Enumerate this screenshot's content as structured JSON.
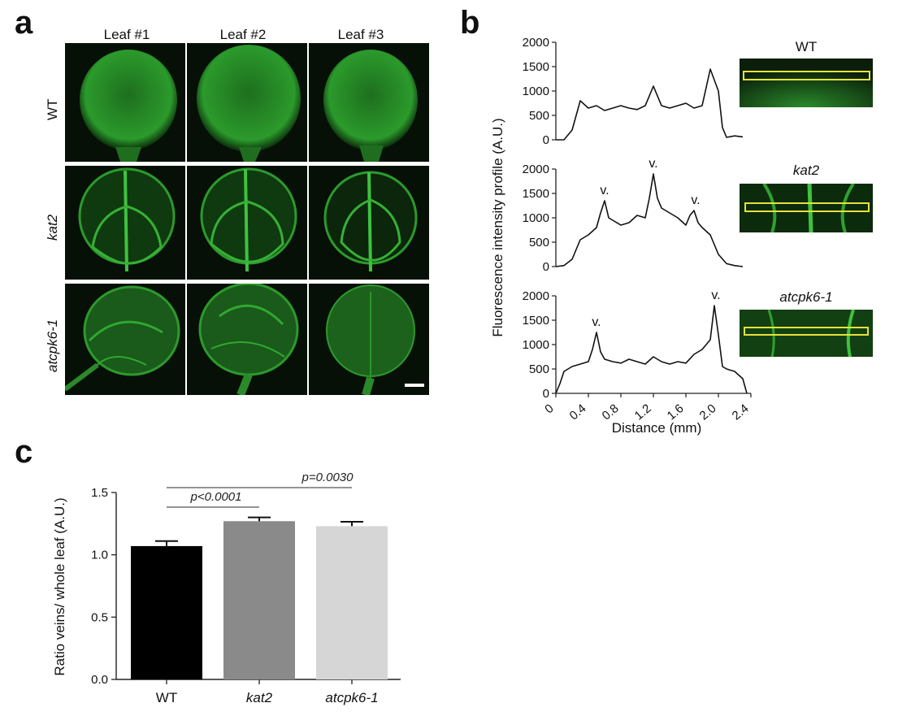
{
  "panel_a": {
    "letter": "a",
    "columns": [
      "Leaf #1",
      "Leaf #2",
      "Leaf #3"
    ],
    "rows": [
      "WT",
      "kat2",
      "atcpk6-1"
    ]
  },
  "panel_b": {
    "letter": "b",
    "ylabel": "Fluorescence intensity profile (A.U.)",
    "xlabel": "Distance (mm)",
    "vein_marker": "v.",
    "genotypes": [
      "WT",
      "kat2",
      "atcpk6-1"
    ]
  },
  "panel_c": {
    "letter": "c"
  },
  "chart_data": [
    {
      "type": "line",
      "panel": "b",
      "genotype": "WT",
      "xlabel": "Distance (mm)",
      "ylabel": "Fluorescence intensity profile (A.U.)",
      "xlim": [
        0,
        2.4
      ],
      "ylim": [
        0,
        2000
      ],
      "xticks": [
        "0",
        "0.4",
        "0.8",
        "1.2",
        "1.6",
        "2.0",
        "2.4"
      ],
      "yticks": [
        "0",
        "500",
        "1000",
        "1500",
        "2000"
      ],
      "x": [
        0.0,
        0.1,
        0.2,
        0.3,
        0.4,
        0.5,
        0.6,
        0.7,
        0.8,
        0.9,
        1.0,
        1.1,
        1.2,
        1.3,
        1.4,
        1.5,
        1.6,
        1.7,
        1.8,
        1.9,
        2.0,
        2.05,
        2.1,
        2.2,
        2.3
      ],
      "y": [
        0,
        0,
        200,
        800,
        650,
        700,
        600,
        650,
        700,
        650,
        620,
        700,
        1100,
        700,
        650,
        700,
        750,
        650,
        700,
        1450,
        1000,
        250,
        50,
        80,
        60
      ],
      "annotations": []
    },
    {
      "type": "line",
      "panel": "b",
      "genotype": "kat2",
      "xlabel": "Distance (mm)",
      "ylabel": "Fluorescence intensity profile (A.U.)",
      "xlim": [
        0,
        2.4
      ],
      "ylim": [
        0,
        2000
      ],
      "xticks": [
        "0",
        "0.4",
        "0.8",
        "1.2",
        "1.6",
        "2.0",
        "2.4"
      ],
      "yticks": [
        "0",
        "500",
        "1000",
        "1500",
        "2000"
      ],
      "x": [
        0.0,
        0.1,
        0.2,
        0.3,
        0.4,
        0.5,
        0.55,
        0.6,
        0.65,
        0.7,
        0.8,
        0.9,
        1.0,
        1.1,
        1.15,
        1.2,
        1.25,
        1.3,
        1.4,
        1.5,
        1.6,
        1.65,
        1.7,
        1.75,
        1.8,
        1.9,
        2.0,
        2.1,
        2.2,
        2.3
      ],
      "y": [
        0,
        20,
        150,
        550,
        650,
        800,
        1100,
        1350,
        1000,
        950,
        850,
        900,
        1050,
        1000,
        1400,
        1900,
        1400,
        1200,
        1100,
        1000,
        850,
        1050,
        1150,
        900,
        800,
        650,
        250,
        60,
        20,
        0
      ],
      "annotations": [
        {
          "label": "v.",
          "x": 0.6,
          "y": 1350
        },
        {
          "label": "v.",
          "x": 1.2,
          "y": 1900
        },
        {
          "label": "v.",
          "x": 1.72,
          "y": 1150
        }
      ]
    },
    {
      "type": "line",
      "panel": "b",
      "genotype": "atcpk6-1",
      "xlabel": "Distance (mm)",
      "ylabel": "Fluorescence intensity profile (A.U.)",
      "xlim": [
        0,
        2.4
      ],
      "ylim": [
        0,
        2000
      ],
      "xticks": [
        "0",
        "0.4",
        "0.8",
        "1.2",
        "1.6",
        "2.0",
        "2.4"
      ],
      "yticks": [
        "0",
        "500",
        "1000",
        "1500",
        "2000"
      ],
      "x": [
        0.0,
        0.05,
        0.1,
        0.2,
        0.3,
        0.4,
        0.45,
        0.5,
        0.55,
        0.6,
        0.7,
        0.8,
        0.9,
        1.0,
        1.1,
        1.2,
        1.3,
        1.4,
        1.5,
        1.6,
        1.7,
        1.8,
        1.9,
        1.95,
        2.0,
        2.05,
        2.1,
        2.2,
        2.3,
        2.35
      ],
      "y": [
        0,
        200,
        450,
        550,
        600,
        650,
        900,
        1250,
        850,
        700,
        650,
        620,
        700,
        650,
        600,
        750,
        650,
        600,
        650,
        620,
        800,
        900,
        1100,
        1800,
        1200,
        550,
        500,
        450,
        300,
        0
      ],
      "annotations": [
        {
          "label": "v.",
          "x": 0.5,
          "y": 1250
        },
        {
          "label": "v.",
          "x": 1.97,
          "y": 1800
        }
      ]
    },
    {
      "type": "bar",
      "panel": "c",
      "categories": [
        "WT",
        "kat2",
        "atcpk6-1"
      ],
      "values": [
        1.07,
        1.27,
        1.23
      ],
      "errors": [
        0.04,
        0.03,
        0.035
      ],
      "colors": [
        "#000000",
        "#8a8a8a",
        "#d6d6d6"
      ],
      "ylabel": "Ratio veins/ whole leaf (A.U.)",
      "ylim": [
        0,
        1.5
      ],
      "yticks": [
        "0.0",
        "0.5",
        "1.0",
        "1.5"
      ],
      "significance": [
        {
          "from": "WT",
          "to": "kat2",
          "label": "p<0.0001"
        },
        {
          "from": "WT",
          "to": "atcpk6-1",
          "label": "p=0.0030"
        }
      ]
    }
  ]
}
